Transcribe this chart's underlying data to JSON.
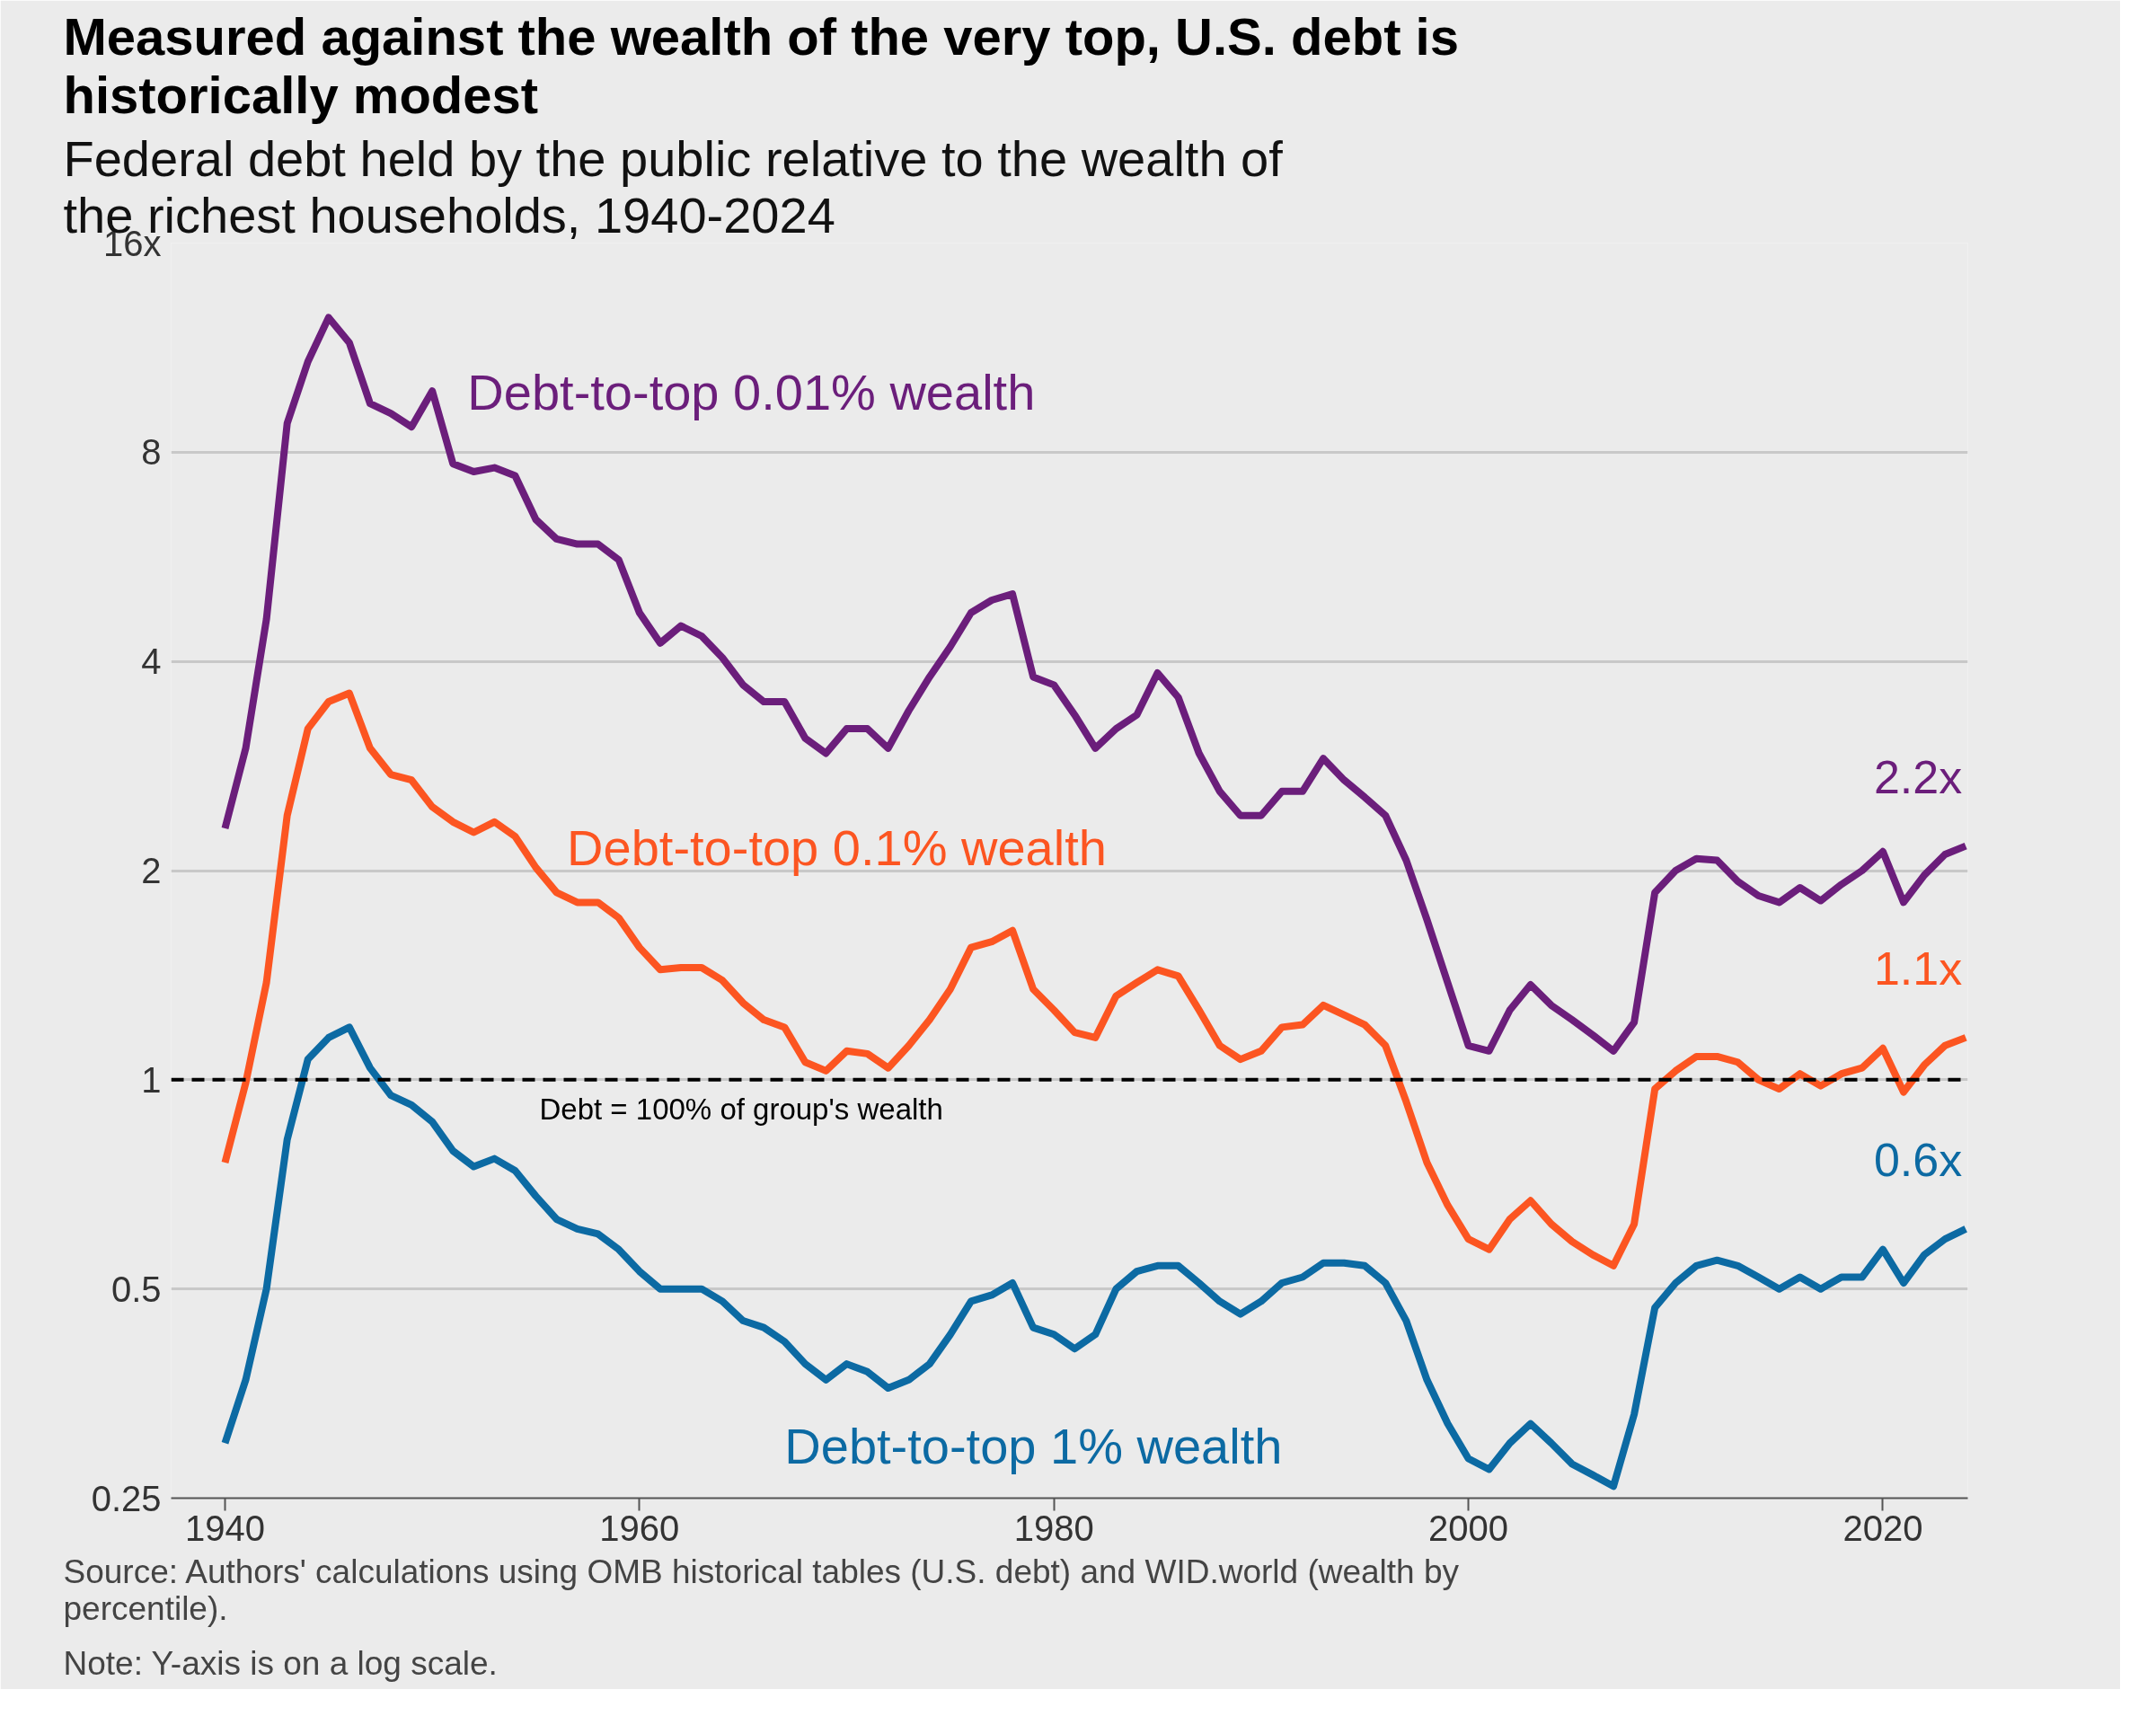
{
  "chart_data": {
    "type": "line",
    "title": "Measured against the wealth of the very top, U.S. debt is historically modest",
    "subtitle": "Federal debt held by the public relative to the wealth of the richest households, 1940-2024",
    "x": [
      1940,
      1941,
      1942,
      1943,
      1944,
      1945,
      1946,
      1947,
      1948,
      1949,
      1950,
      1951,
      1952,
      1953,
      1954,
      1955,
      1956,
      1957,
      1958,
      1959,
      1960,
      1961,
      1962,
      1963,
      1964,
      1965,
      1966,
      1967,
      1968,
      1969,
      1970,
      1971,
      1972,
      1973,
      1974,
      1975,
      1976,
      1977,
      1978,
      1979,
      1980,
      1981,
      1982,
      1983,
      1984,
      1985,
      1986,
      1987,
      1988,
      1989,
      1990,
      1991,
      1992,
      1993,
      1994,
      1995,
      1996,
      1997,
      1998,
      1999,
      2000,
      2001,
      2002,
      2003,
      2004,
      2005,
      2006,
      2007,
      2008,
      2009,
      2010,
      2011,
      2012,
      2013,
      2014,
      2015,
      2016,
      2017,
      2018,
      2019,
      2020,
      2021,
      2022,
      2023,
      2024
    ],
    "series": [
      {
        "name": "Debt-to-top 0.01% wealth",
        "color": "#6b1e7b",
        "values": [
          2.3,
          3.0,
          4.6,
          8.8,
          10.8,
          12.5,
          11.5,
          9.4,
          9.1,
          8.7,
          9.8,
          7.7,
          7.5,
          7.6,
          7.4,
          6.4,
          6.0,
          5.9,
          5.9,
          5.6,
          4.7,
          4.25,
          4.5,
          4.35,
          4.05,
          3.7,
          3.5,
          3.5,
          3.1,
          2.95,
          3.2,
          3.2,
          3.0,
          3.4,
          3.8,
          4.2,
          4.7,
          4.9,
          5.0,
          3.8,
          3.7,
          3.35,
          3.0,
          3.2,
          3.35,
          3.85,
          3.55,
          2.95,
          2.6,
          2.4,
          2.4,
          2.6,
          2.6,
          2.9,
          2.7,
          2.55,
          2.4,
          2.07,
          1.7,
          1.38,
          1.12,
          1.1,
          1.26,
          1.37,
          1.28,
          1.22,
          1.16,
          1.1,
          1.21,
          1.86,
          2.0,
          2.08,
          2.07,
          1.93,
          1.84,
          1.8,
          1.89,
          1.81,
          1.91,
          2.0,
          2.13,
          1.8,
          1.97,
          2.11,
          2.17
        ],
        "value_labels": [
          null,
          null,
          null,
          null,
          null,
          null,
          null,
          null,
          null,
          null,
          null,
          null,
          null,
          null,
          null,
          null,
          null,
          null,
          null,
          null,
          null,
          null,
          null,
          null,
          null,
          null,
          null,
          null,
          null,
          null,
          null,
          null,
          null,
          null,
          null,
          null,
          null,
          null,
          null,
          null,
          null,
          null,
          null,
          null,
          null,
          null,
          null,
          null,
          null,
          null,
          null,
          null,
          null,
          null,
          null,
          null,
          null,
          null,
          null,
          null,
          null,
          null,
          null,
          null,
          null,
          null,
          null,
          null,
          null,
          null,
          null,
          null,
          null,
          null,
          null,
          null,
          null,
          null,
          null,
          null,
          null,
          null,
          null,
          null,
          "2.2x"
        ]
      },
      {
        "name": "Debt-to-top 0.1% wealth",
        "color": "#fc5521",
        "values": [
          0.76,
          0.99,
          1.38,
          2.4,
          3.2,
          3.5,
          3.6,
          3.0,
          2.75,
          2.7,
          2.47,
          2.35,
          2.27,
          2.35,
          2.24,
          2.02,
          1.86,
          1.8,
          1.8,
          1.71,
          1.55,
          1.44,
          1.45,
          1.45,
          1.39,
          1.29,
          1.22,
          1.19,
          1.06,
          1.03,
          1.1,
          1.09,
          1.04,
          1.12,
          1.22,
          1.35,
          1.55,
          1.58,
          1.64,
          1.35,
          1.26,
          1.17,
          1.15,
          1.32,
          1.38,
          1.44,
          1.41,
          1.26,
          1.12,
          1.07,
          1.1,
          1.19,
          1.2,
          1.28,
          1.24,
          1.2,
          1.12,
          0.93,
          0.76,
          0.66,
          0.59,
          0.57,
          0.63,
          0.67,
          0.62,
          0.585,
          0.56,
          0.54,
          0.62,
          0.97,
          1.03,
          1.08,
          1.08,
          1.06,
          1.0,
          0.97,
          1.02,
          0.98,
          1.02,
          1.04,
          1.11,
          0.96,
          1.05,
          1.12,
          1.15
        ],
        "value_labels": [
          null,
          null,
          null,
          null,
          null,
          null,
          null,
          null,
          null,
          null,
          null,
          null,
          null,
          null,
          null,
          null,
          null,
          null,
          null,
          null,
          null,
          null,
          null,
          null,
          null,
          null,
          null,
          null,
          null,
          null,
          null,
          null,
          null,
          null,
          null,
          null,
          null,
          null,
          null,
          null,
          null,
          null,
          null,
          null,
          null,
          null,
          null,
          null,
          null,
          null,
          null,
          null,
          null,
          null,
          null,
          null,
          null,
          null,
          null,
          null,
          null,
          null,
          null,
          null,
          null,
          null,
          null,
          null,
          null,
          null,
          null,
          null,
          null,
          null,
          null,
          null,
          null,
          null,
          null,
          null,
          null,
          null,
          null,
          null,
          "1.1x"
        ]
      },
      {
        "name": "Debt-to-top 1% wealth",
        "color": "#0c6aa3",
        "values": [
          0.3,
          0.37,
          0.5,
          0.82,
          1.07,
          1.15,
          1.19,
          1.04,
          0.95,
          0.92,
          0.87,
          0.79,
          0.75,
          0.77,
          0.74,
          0.68,
          0.63,
          0.61,
          0.6,
          0.57,
          0.53,
          0.5,
          0.5,
          0.5,
          0.48,
          0.45,
          0.44,
          0.42,
          0.39,
          0.37,
          0.39,
          0.38,
          0.36,
          0.37,
          0.39,
          0.43,
          0.48,
          0.49,
          0.51,
          0.44,
          0.43,
          0.41,
          0.43,
          0.5,
          0.53,
          0.54,
          0.54,
          0.51,
          0.48,
          0.46,
          0.48,
          0.51,
          0.52,
          0.545,
          0.545,
          0.54,
          0.51,
          0.45,
          0.37,
          0.32,
          0.285,
          0.275,
          0.3,
          0.32,
          0.3,
          0.28,
          0.27,
          0.26,
          0.33,
          0.47,
          0.51,
          0.54,
          0.55,
          0.54,
          0.52,
          0.5,
          0.52,
          0.5,
          0.52,
          0.52,
          0.57,
          0.51,
          0.56,
          0.59,
          0.61
        ],
        "value_labels": [
          null,
          null,
          null,
          null,
          null,
          null,
          null,
          null,
          null,
          null,
          null,
          null,
          null,
          null,
          null,
          null,
          null,
          null,
          null,
          null,
          null,
          null,
          null,
          null,
          null,
          null,
          null,
          null,
          null,
          null,
          null,
          null,
          null,
          null,
          null,
          null,
          null,
          null,
          null,
          null,
          null,
          null,
          null,
          null,
          null,
          null,
          null,
          null,
          null,
          null,
          null,
          null,
          null,
          null,
          null,
          null,
          null,
          null,
          null,
          null,
          null,
          null,
          null,
          null,
          null,
          null,
          null,
          null,
          null,
          null,
          null,
          null,
          null,
          null,
          null,
          null,
          null,
          null,
          null,
          null,
          null,
          null,
          null,
          null,
          "0.6x"
        ]
      }
    ],
    "log": "y",
    "xlim": [
      1937.4,
      2024.1
    ],
    "ylim": [
      0.25,
      16
    ],
    "xticks": [
      1940,
      1960,
      1980,
      2000,
      2020
    ],
    "yticks": [
      0.25,
      0.5,
      1,
      2,
      4,
      8,
      {
        "value": 16,
        "label": "16x"
      }
    ],
    "grid": "y",
    "marker": "none",
    "line_style": "solid",
    "ref_lines": [
      {
        "axis": "y",
        "value": 1,
        "label": "Debt = 100% of group's wealth",
        "color": "#000000",
        "line_style": "dashed"
      }
    ],
    "annotations": [
      "Source: Authors' calculations using OMB historical tables (U.S. debt) and WID.world (wealth by percentile).",
      "Note: Y-axis is on a log scale."
    ]
  }
}
